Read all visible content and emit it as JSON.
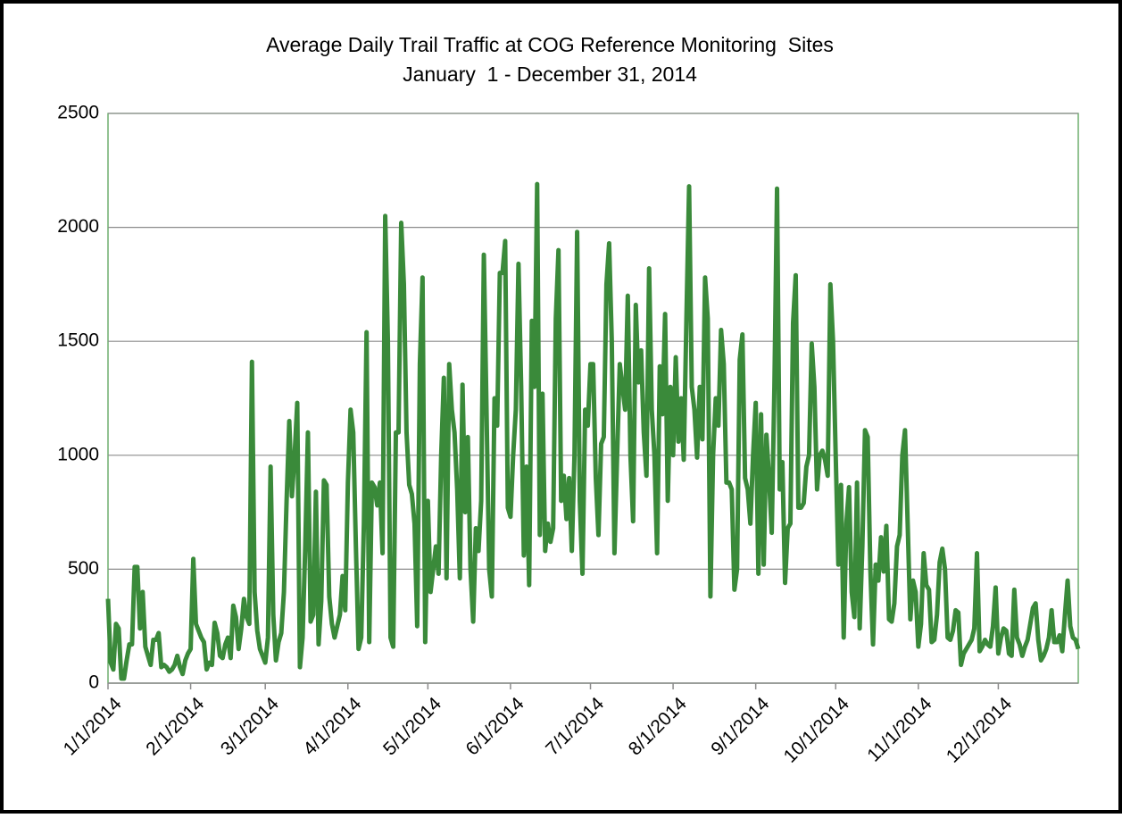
{
  "chart_data": {
    "type": "line",
    "title": "Average Daily Trail Traffic at COG Reference Monitoring  Sites",
    "subtitle": "January  1 - December 31, 2014",
    "color": "#3a8a3a",
    "grid": true,
    "ylim": [
      0,
      2500
    ],
    "yticks": [
      0,
      500,
      1000,
      1500,
      2000,
      2500
    ],
    "xlim": [
      "1/1/2014",
      "12/31/2014"
    ],
    "xticks": [
      "1/1/2014",
      "2/1/2014",
      "3/1/2014",
      "4/1/2014",
      "5/1/2014",
      "6/1/2014",
      "7/1/2014",
      "8/1/2014",
      "9/1/2014",
      "10/1/2014",
      "11/1/2014",
      "12/1/2014"
    ],
    "x": [
      "1/1/2014",
      "1/2/2014",
      "1/3/2014",
      "1/4/2014",
      "1/5/2014",
      "1/6/2014",
      "1/7/2014",
      "1/8/2014",
      "1/9/2014",
      "1/10/2014",
      "1/11/2014",
      "1/12/2014",
      "1/13/2014",
      "1/14/2014",
      "1/15/2014",
      "1/16/2014",
      "1/17/2014",
      "1/18/2014",
      "1/19/2014",
      "1/20/2014",
      "1/21/2014",
      "1/22/2014",
      "1/23/2014",
      "1/24/2014",
      "1/25/2014",
      "1/26/2014",
      "1/27/2014",
      "1/28/2014",
      "1/29/2014",
      "1/30/2014",
      "1/31/2014",
      "2/1/2014",
      "2/2/2014",
      "2/3/2014",
      "2/4/2014",
      "2/5/2014",
      "2/6/2014",
      "2/7/2014",
      "2/8/2014",
      "2/9/2014",
      "2/10/2014",
      "2/11/2014",
      "2/12/2014",
      "2/13/2014",
      "2/14/2014",
      "2/15/2014",
      "2/16/2014",
      "2/17/2014",
      "2/18/2014",
      "2/19/2014",
      "2/20/2014",
      "2/21/2014",
      "2/22/2014",
      "2/23/2014",
      "2/24/2014",
      "2/25/2014",
      "2/26/2014",
      "2/27/2014",
      "2/28/2014",
      "3/1/2014",
      "3/2/2014",
      "3/3/2014",
      "3/4/2014",
      "3/5/2014",
      "3/6/2014",
      "3/7/2014",
      "3/8/2014",
      "3/9/2014",
      "3/10/2014",
      "3/11/2014",
      "3/12/2014",
      "3/13/2014",
      "3/14/2014",
      "3/15/2014",
      "3/16/2014",
      "3/17/2014",
      "3/18/2014",
      "3/19/2014",
      "3/20/2014",
      "3/21/2014",
      "3/22/2014",
      "3/23/2014",
      "3/24/2014",
      "3/25/2014",
      "3/26/2014",
      "3/27/2014",
      "3/28/2014",
      "3/29/2014",
      "3/30/2014",
      "3/31/2014",
      "4/1/2014",
      "4/2/2014",
      "4/3/2014",
      "4/4/2014",
      "4/5/2014",
      "4/6/2014",
      "4/7/2014",
      "4/8/2014",
      "4/9/2014",
      "4/10/2014",
      "4/11/2014",
      "4/12/2014",
      "4/13/2014",
      "4/14/2014",
      "4/15/2014",
      "4/16/2014",
      "4/17/2014",
      "4/18/2014",
      "4/19/2014",
      "4/20/2014",
      "4/21/2014",
      "4/22/2014",
      "4/23/2014",
      "4/24/2014",
      "4/25/2014",
      "4/26/2014",
      "4/27/2014",
      "4/28/2014",
      "4/29/2014",
      "4/30/2014",
      "5/1/2014",
      "5/2/2014",
      "5/3/2014",
      "5/4/2014",
      "5/5/2014",
      "5/6/2014",
      "5/7/2014",
      "5/8/2014",
      "5/9/2014",
      "5/10/2014",
      "5/11/2014",
      "5/12/2014",
      "5/13/2014",
      "5/14/2014",
      "5/15/2014",
      "5/16/2014",
      "5/17/2014",
      "5/18/2014",
      "5/19/2014",
      "5/20/2014",
      "5/21/2014",
      "5/22/2014",
      "5/23/2014",
      "5/24/2014",
      "5/25/2014",
      "5/26/2014",
      "5/27/2014",
      "5/28/2014",
      "5/29/2014",
      "5/30/2014",
      "5/31/2014",
      "6/1/2014",
      "6/2/2014",
      "6/3/2014",
      "6/4/2014",
      "6/5/2014",
      "6/6/2014",
      "6/7/2014",
      "6/8/2014",
      "6/9/2014",
      "6/10/2014",
      "6/11/2014",
      "6/12/2014",
      "6/13/2014",
      "6/14/2014",
      "6/15/2014",
      "6/16/2014",
      "6/17/2014",
      "6/18/2014",
      "6/19/2014",
      "6/20/2014",
      "6/21/2014",
      "6/22/2014",
      "6/23/2014",
      "6/24/2014",
      "6/25/2014",
      "6/26/2014",
      "6/27/2014",
      "6/28/2014",
      "6/29/2014",
      "6/30/2014",
      "7/1/2014",
      "7/2/2014",
      "7/3/2014",
      "7/4/2014",
      "7/5/2014",
      "7/6/2014",
      "7/7/2014",
      "7/8/2014",
      "7/9/2014",
      "7/10/2014",
      "7/11/2014",
      "7/12/2014",
      "7/13/2014",
      "7/14/2014",
      "7/15/2014",
      "7/16/2014",
      "7/17/2014",
      "7/18/2014",
      "7/19/2014",
      "7/20/2014",
      "7/21/2014",
      "7/22/2014",
      "7/23/2014",
      "7/24/2014",
      "7/25/2014",
      "7/26/2014",
      "7/27/2014",
      "7/28/2014",
      "7/29/2014",
      "7/30/2014",
      "7/31/2014",
      "8/1/2014",
      "8/2/2014",
      "8/3/2014",
      "8/4/2014",
      "8/5/2014",
      "8/6/2014",
      "8/7/2014",
      "8/8/2014",
      "8/9/2014",
      "8/10/2014",
      "8/11/2014",
      "8/12/2014",
      "8/13/2014",
      "8/14/2014",
      "8/15/2014",
      "8/16/2014",
      "8/17/2014",
      "8/18/2014",
      "8/19/2014",
      "8/20/2014",
      "8/21/2014",
      "8/22/2014",
      "8/23/2014",
      "8/24/2014",
      "8/25/2014",
      "8/26/2014",
      "8/27/2014",
      "8/28/2014",
      "8/29/2014",
      "8/30/2014",
      "8/31/2014",
      "9/1/2014",
      "9/2/2014",
      "9/3/2014",
      "9/4/2014",
      "9/5/2014",
      "9/6/2014",
      "9/7/2014",
      "9/8/2014",
      "9/9/2014",
      "9/10/2014",
      "9/11/2014",
      "9/12/2014",
      "9/13/2014",
      "9/14/2014",
      "9/15/2014",
      "9/16/2014",
      "9/17/2014",
      "9/18/2014",
      "9/19/2014",
      "9/20/2014",
      "9/21/2014",
      "9/22/2014",
      "9/23/2014",
      "9/24/2014",
      "9/25/2014",
      "9/26/2014",
      "9/27/2014",
      "9/28/2014",
      "9/29/2014",
      "9/30/2014",
      "10/1/2014",
      "10/2/2014",
      "10/3/2014",
      "10/4/2014",
      "10/5/2014",
      "10/6/2014",
      "10/7/2014",
      "10/8/2014",
      "10/9/2014",
      "10/10/2014",
      "10/11/2014",
      "10/12/2014",
      "10/13/2014",
      "10/14/2014",
      "10/15/2014",
      "10/16/2014",
      "10/17/2014",
      "10/18/2014",
      "10/19/2014",
      "10/20/2014",
      "10/21/2014",
      "10/22/2014",
      "10/23/2014",
      "10/24/2014",
      "10/25/2014",
      "10/26/2014",
      "10/27/2014",
      "10/28/2014",
      "10/29/2014",
      "10/30/2014",
      "10/31/2014",
      "11/1/2014",
      "11/2/2014",
      "11/3/2014",
      "11/4/2014",
      "11/5/2014",
      "11/6/2014",
      "11/7/2014",
      "11/8/2014",
      "11/9/2014",
      "11/10/2014",
      "11/11/2014",
      "11/12/2014",
      "11/13/2014",
      "11/14/2014",
      "11/15/2014",
      "11/16/2014",
      "11/17/2014",
      "11/18/2014",
      "11/19/2014",
      "11/20/2014",
      "11/21/2014",
      "11/22/2014",
      "11/23/2014",
      "11/24/2014",
      "11/25/2014",
      "11/26/2014",
      "11/27/2014",
      "11/28/2014",
      "11/29/2014",
      "11/30/2014",
      "12/1/2014",
      "12/2/2014",
      "12/3/2014",
      "12/4/2014",
      "12/5/2014",
      "12/6/2014",
      "12/7/2014",
      "12/8/2014",
      "12/9/2014",
      "12/10/2014",
      "12/11/2014",
      "12/12/2014",
      "12/13/2014",
      "12/14/2014",
      "12/15/2014",
      "12/16/2014",
      "12/17/2014",
      "12/18/2014",
      "12/19/2014",
      "12/20/2014",
      "12/21/2014",
      "12/22/2014",
      "12/23/2014",
      "12/24/2014",
      "12/25/2014",
      "12/26/2014",
      "12/27/2014",
      "12/28/2014",
      "12/29/2014",
      "12/30/2014",
      "12/31/2014"
    ],
    "values": [
      370,
      90,
      60,
      260,
      240,
      20,
      20,
      100,
      170,
      170,
      510,
      510,
      240,
      400,
      160,
      120,
      80,
      190,
      190,
      220,
      70,
      80,
      70,
      50,
      60,
      80,
      120,
      70,
      40,
      100,
      130,
      150,
      545,
      260,
      230,
      200,
      180,
      60,
      90,
      80,
      265,
      220,
      120,
      110,
      170,
      200,
      110,
      340,
      290,
      150,
      240,
      370,
      290,
      260,
      1410,
      400,
      230,
      150,
      120,
      90,
      200,
      950,
      300,
      100,
      180,
      220,
      400,
      800,
      1150,
      820,
      1000,
      1230,
      70,
      200,
      600,
      1100,
      270,
      300,
      840,
      170,
      360,
      890,
      870,
      380,
      260,
      200,
      250,
      300,
      470,
      320,
      880,
      1200,
      1100,
      600,
      150,
      200,
      700,
      1540,
      180,
      880,
      860,
      780,
      880,
      570,
      2050,
      1500,
      200,
      160,
      1100,
      1100,
      2020,
      1750,
      1100,
      870,
      830,
      700,
      250,
      1400,
      1780,
      180,
      800,
      400,
      500,
      600,
      480,
      1000,
      1340,
      460,
      1400,
      1200,
      1100,
      850,
      460,
      1310,
      750,
      1080,
      500,
      270,
      680,
      580,
      800,
      1880,
      1200,
      500,
      380,
      1250,
      1130,
      1800,
      1800,
      1940,
      770,
      730,
      1000,
      1200,
      1840,
      1300,
      560,
      950,
      430,
      1590,
      1300,
      2190,
      650,
      1270,
      580,
      700,
      620,
      680,
      1600,
      1900,
      800,
      910,
      720,
      900,
      580,
      1000,
      1980,
      800,
      480,
      1200,
      1130,
      1400,
      1400,
      900,
      650,
      1050,
      1080,
      1750,
      1930,
      1500,
      570,
      1000,
      1400,
      1300,
      1200,
      1700,
      1000,
      710,
      1660,
      1320,
      1460,
      1100,
      910,
      1820,
      1200,
      1000,
      570,
      1390,
      1180,
      1620,
      800,
      1300,
      1000,
      1430,
      1060,
      1250,
      980,
      1600,
      2180,
      1300,
      1200,
      990,
      1300,
      1070,
      1780,
      1600,
      380,
      1000,
      1250,
      1130,
      1550,
      1400,
      880,
      880,
      850,
      410,
      500,
      1420,
      1530,
      900,
      850,
      700,
      1000,
      1230,
      480,
      1180,
      520,
      1090,
      900,
      660,
      1300,
      2170,
      850,
      970,
      440,
      680,
      700,
      1580,
      1790,
      770,
      770,
      790,
      950,
      1000,
      1490,
      1300,
      850,
      1000,
      1020,
      980,
      910,
      1750,
      1500,
      1000,
      520,
      870,
      200,
      700,
      860,
      400,
      290,
      880,
      240,
      600,
      1110,
      1080,
      500,
      170,
      520,
      450,
      640,
      490,
      690,
      280,
      270,
      350,
      600,
      650,
      1000,
      1110,
      700,
      280,
      450,
      400,
      160,
      260,
      570,
      430,
      410,
      180,
      190,
      300,
      530,
      590,
      500,
      200,
      190,
      230,
      320,
      310,
      80,
      130,
      150,
      170,
      190,
      240,
      570,
      140,
      160,
      190,
      170,
      160,
      250,
      420,
      130,
      200,
      240,
      230,
      130,
      120,
      410,
      200,
      170,
      120,
      160,
      190,
      260,
      330,
      350,
      190,
      100,
      120,
      150,
      200,
      320,
      180,
      180,
      210,
      140,
      300,
      450,
      250,
      200,
      190,
      150
    ]
  }
}
